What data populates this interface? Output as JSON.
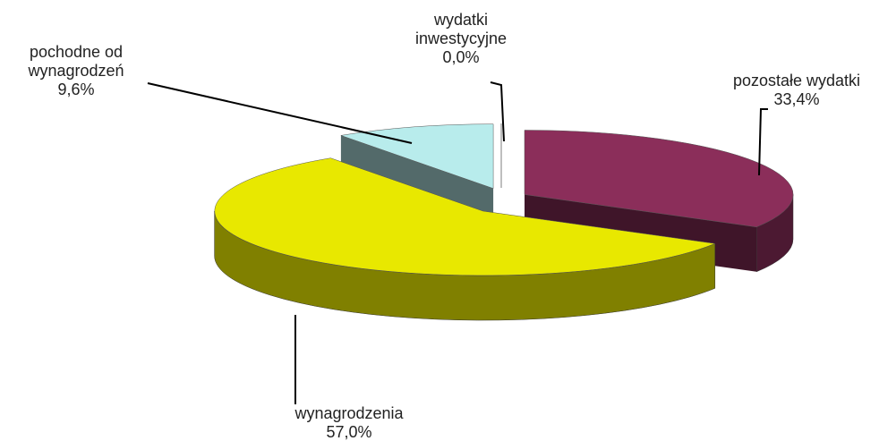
{
  "chart_data": {
    "type": "pie",
    "categories": [
      "pozostałe wydatki",
      "wynagrodzenia",
      "pochodne od wynagrodzeń",
      "wydatki inwestycyjne"
    ],
    "values": [
      33.4,
      57.0,
      9.6,
      0.0
    ],
    "value_labels": [
      "33,4%",
      "57,0%",
      "9,6%",
      "0,0%"
    ],
    "colors": [
      "#8b2e5a",
      "#e8e800",
      "#b8ecec",
      "#f4f4f4"
    ]
  }
}
